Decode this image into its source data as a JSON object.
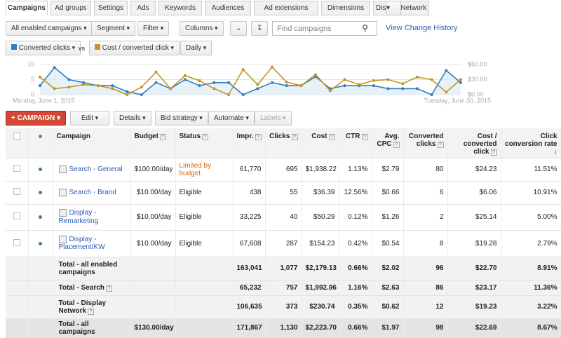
{
  "tabs": [
    "Campaigns",
    "Ad groups",
    "Settings",
    "Ads",
    "Keywords",
    "Audiences",
    "Ad extensions",
    "Dimensions",
    "Display Network"
  ],
  "toolbar": {
    "scope": "All enabled campaigns",
    "segment": "Segment",
    "filter": "Filter",
    "columns": "Columns",
    "search_placeholder": "Find campaigns",
    "history_link": "View Change History"
  },
  "chart_controls": {
    "metric1": "Converted clicks",
    "vs": "vs",
    "metric2": "Cost / converted click",
    "period": "Daily"
  },
  "chart_data": {
    "type": "line",
    "categories": [
      "Monday, June 1, 2015",
      null,
      null,
      null,
      null,
      null,
      null,
      null,
      null,
      null,
      null,
      null,
      null,
      null,
      null,
      null,
      null,
      null,
      null,
      null,
      null,
      null,
      null,
      null,
      null,
      null,
      null,
      null,
      null,
      "Tuesday, June 30, 2015"
    ],
    "series": [
      {
        "name": "Converted clicks",
        "color": "#2f7ec1",
        "values": [
          3,
          9,
          5,
          4,
          3,
          3,
          1,
          0,
          4,
          2,
          5,
          3,
          4,
          4,
          0,
          2,
          4,
          3,
          3,
          6,
          2,
          3,
          3,
          3,
          2,
          2,
          2,
          0,
          8,
          4
        ]
      },
      {
        "name": "Cost / converted click",
        "color": "#c4961c",
        "axis": "y2",
        "values": [
          35,
          12,
          15,
          20,
          18,
          12,
          0,
          15,
          45,
          12,
          38,
          28,
          12,
          0,
          50,
          20,
          55,
          25,
          18,
          40,
          8,
          30,
          20,
          28,
          30,
          22,
          35,
          30,
          5,
          30
        ]
      }
    ],
    "ylim": [
      0,
      10
    ],
    "yticks": [
      0,
      5,
      10
    ],
    "y2lim": [
      0,
      60
    ],
    "y2ticks": [
      {
        "value": 0,
        "label": "$0.00"
      },
      {
        "value": 30,
        "label": "$30.00"
      },
      {
        "value": 60,
        "label": "$60.00"
      }
    ]
  },
  "actions": {
    "new_campaign": "CAMPAIGN",
    "edit": "Edit",
    "details": "Details",
    "bid_strategy": "Bid strategy",
    "automate": "Automate",
    "labels": "Labels"
  },
  "table": {
    "columns": [
      "Campaign",
      "Budget",
      "Status",
      "Impr.",
      "Clicks",
      "Cost",
      "CTR",
      "Avg. CPC",
      "Converted clicks",
      "Cost / converted click",
      "Click conversion rate"
    ],
    "rows": [
      [
        "Search - General",
        "$100.00/day",
        "Limited by budget",
        "61,770",
        "695",
        "$1,938.22",
        "1.13%",
        "$2.79",
        "80",
        "$24.23",
        "11.51%"
      ],
      [
        "Search - Brand",
        "$10.00/day",
        "Eligible",
        "438",
        "55",
        "$36.39",
        "12.56%",
        "$0.66",
        "6",
        "$6.06",
        "10.91%"
      ],
      [
        "Display - Remarketing",
        "$10.00/day",
        "Eligible",
        "33,225",
        "40",
        "$50.29",
        "0.12%",
        "$1.26",
        "2",
        "$25.14",
        "5.00%"
      ],
      [
        "Display - Placement/KW",
        "$10.00/day",
        "Eligible",
        "67,608",
        "287",
        "$154.23",
        "0.42%",
        "$0.54",
        "8",
        "$19.28",
        "2.79%"
      ]
    ],
    "totals": [
      [
        "Total - all enabled campaigns",
        null,
        null,
        "163,041",
        "1,077",
        "$2,179.13",
        "0.66%",
        "$2.02",
        "96",
        "$22.70",
        "8.91%"
      ],
      [
        "Total - Search",
        null,
        null,
        "65,232",
        "757",
        "$1,992.96",
        "1.16%",
        "$2.63",
        "86",
        "$23.17",
        "11.36%"
      ],
      [
        "Total - Display Network",
        null,
        null,
        "106,635",
        "373",
        "$230.74",
        "0.35%",
        "$0.62",
        "12",
        "$19.23",
        "3.22%"
      ],
      [
        "Total - all campaigns",
        "$130.00/day",
        null,
        "171,867",
        "1,130",
        "$2,223.70",
        "0.66%",
        "$1.97",
        "98",
        "$22.69",
        "8.67%"
      ]
    ]
  }
}
